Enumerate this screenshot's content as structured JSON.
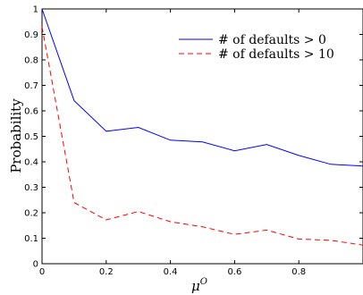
{
  "chart_data": {
    "type": "line",
    "title": "",
    "xlabel": "μ",
    "xlabel_sup": "O",
    "ylabel": "Probability",
    "xlim": [
      0,
      1
    ],
    "ylim": [
      0,
      1
    ],
    "xticks": [
      0,
      0.2,
      0.4,
      0.6,
      0.8
    ],
    "xtick_labels": [
      "0",
      "0.2",
      "0.4",
      "0.6",
      "0.8"
    ],
    "yticks": [
      0,
      0.1,
      0.2,
      0.3,
      0.4,
      0.5,
      0.6,
      0.7,
      0.8,
      0.9,
      1
    ],
    "ytick_labels": [
      "0",
      "0.1",
      "0.2",
      "0.3",
      "0.4",
      "0.5",
      "0.6",
      "0.7",
      "0.8",
      "0.9",
      "1"
    ],
    "grid": false,
    "legend_position": "top-right",
    "x": [
      0,
      0.1,
      0.2,
      0.3,
      0.4,
      0.5,
      0.6,
      0.7,
      0.8,
      0.9,
      1.0
    ],
    "series": [
      {
        "name": "# of defaults > 0",
        "color": "#0000ff",
        "style": "solid",
        "values": [
          1.0,
          0.64,
          0.52,
          0.535,
          0.485,
          0.478,
          0.443,
          0.468,
          0.425,
          0.39,
          0.383
        ]
      },
      {
        "name": "# of defaults > 10",
        "color": "#ff0000",
        "style": "dashed",
        "values": [
          0.93,
          0.24,
          0.172,
          0.205,
          0.165,
          0.145,
          0.115,
          0.132,
          0.097,
          0.092,
          0.073
        ]
      }
    ]
  }
}
